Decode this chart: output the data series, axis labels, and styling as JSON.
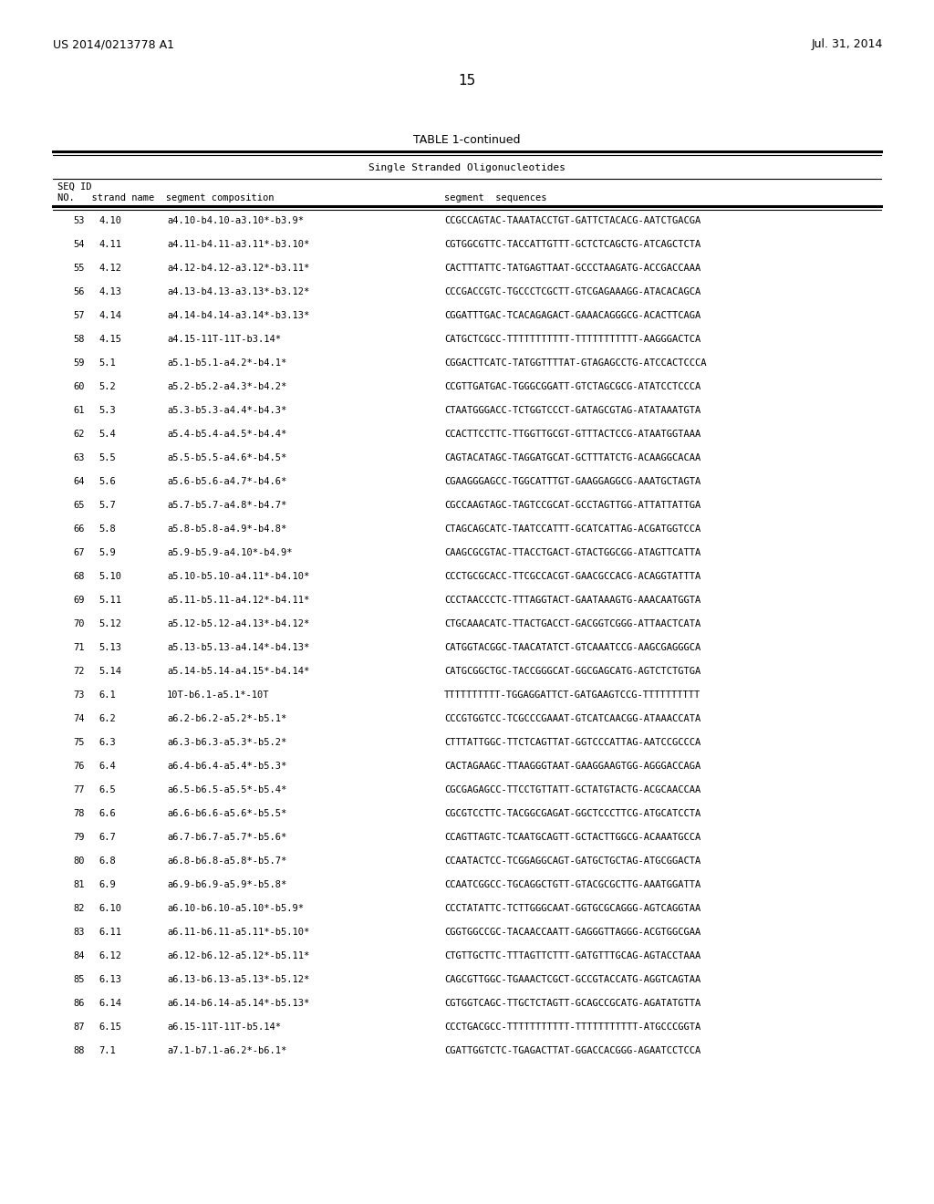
{
  "header_left": "US 2014/0213778 A1",
  "header_right": "Jul. 31, 2014",
  "page_number": "15",
  "table_title": "TABLE 1-continued",
  "table_subtitle": "Single Stranded Oligonucleotides",
  "rows": [
    [
      "53",
      "4.10",
      "a4.10-b4.10-a3.10*-b3.9*",
      "CCGCCAGTAC-TAAATACCTGT-GATTCTACACG-AATCTGACGA"
    ],
    [
      "54",
      "4.11",
      "a4.11-b4.11-a3.11*-b3.10*",
      "CGTGGCGTTC-TACCATTGTTT-GCTCTCAGCTG-ATCAGCTCTA"
    ],
    [
      "55",
      "4.12",
      "a4.12-b4.12-a3.12*-b3.11*",
      "CACTTTATTC-TATGAGTTAAT-GCCCTAAGATG-ACCGACCAAA"
    ],
    [
      "56",
      "4.13",
      "a4.13-b4.13-a3.13*-b3.12*",
      "CCCGACCGTC-TGCCCTCGCTT-GTCGAGAAAGG-ATACACAGCA"
    ],
    [
      "57",
      "4.14",
      "a4.14-b4.14-a3.14*-b3.13*",
      "CGGATTTGAC-TCACAGAGACT-GAAACAGGGCG-ACACTTCAGA"
    ],
    [
      "58",
      "4.15",
      "a4.15-11T-11T-b3.14*",
      "CATGCTCGCC-TTTTTTTTTTT-TTTTTTTTTTT-AAGGGACTCA"
    ],
    [
      "59",
      "5.1",
      "a5.1-b5.1-a4.2*-b4.1*",
      "CGGACTTCATC-TATGGTTTTAT-GTAGAGCCTG-ATCCACTCCCA"
    ],
    [
      "60",
      "5.2",
      "a5.2-b5.2-a4.3*-b4.2*",
      "CCGTTGATGAC-TGGGCGGATT-GTCTAGCGCG-ATATCCTCCCA"
    ],
    [
      "61",
      "5.3",
      "a5.3-b5.3-a4.4*-b4.3*",
      "CTAATGGGACC-TCTGGTCCCT-GATAGCGTAG-ATATAAATGTA"
    ],
    [
      "62",
      "5.4",
      "a5.4-b5.4-a4.5*-b4.4*",
      "CCACTTCCTTC-TTGGTTGCGT-GTTTACTCCG-ATAATGGTAAA"
    ],
    [
      "63",
      "5.5",
      "a5.5-b5.5-a4.6*-b4.5*",
      "CAGTACATAGC-TAGGATGCAT-GCTTTАТCTG-ACAAGGCACAA"
    ],
    [
      "64",
      "5.6",
      "a5.6-b5.6-a4.7*-b4.6*",
      "CGAAGGGAGCC-TGGCATTTGT-GAAGGAGGCG-AAATGCTAGTA"
    ],
    [
      "65",
      "5.7",
      "a5.7-b5.7-a4.8*-b4.7*",
      "CGCCAAGTAGC-TAGTCCGCAT-GCCTAGTTGG-ATTATTATTGA"
    ],
    [
      "66",
      "5.8",
      "a5.8-b5.8-a4.9*-b4.8*",
      "CTAGCAGCATC-TAATCCATTT-GCATCATTAG-ACGATGGTCCA"
    ],
    [
      "67",
      "5.9",
      "a5.9-b5.9-a4.10*-b4.9*",
      "CAAGCGCGTAC-TTACCTGACT-GTACTGGCGG-ATAGTTCATTA"
    ],
    [
      "68",
      "5.10",
      "a5.10-b5.10-a4.11*-b4.10*",
      "CCCTGCGCACC-TTCGCCACGT-GAACGCCACG-ACAGGTATTTA"
    ],
    [
      "69",
      "5.11",
      "a5.11-b5.11-a4.12*-b4.11*",
      "CCCTAACCCTC-TTTAGGTACT-GAATAAAGTG-AAACAATGGTA"
    ],
    [
      "70",
      "5.12",
      "a5.12-b5.12-a4.13*-b4.12*",
      "CTGCAAACATC-TTACTGACCT-GACGGTCGGG-ATTAACTCATA"
    ],
    [
      "71",
      "5.13",
      "a5.13-b5.13-a4.14*-b4.13*",
      "CATGGTACGGC-TAACATATCT-GTCAAATCCG-AAGCGAGGGCA"
    ],
    [
      "72",
      "5.14",
      "a5.14-b5.14-a4.15*-b4.14*",
      "CATGCGGCTGC-TACCGGGCAT-GGCGAGCATG-AGTCTCTGTGA"
    ],
    [
      "73",
      "6.1",
      "10T-b6.1-a5.1*-10T",
      "TTTTTTTTTT-TGGAGGATTCT-GATGAAGTCCG-TTTTTTTTTT"
    ],
    [
      "74",
      "6.2",
      "a6.2-b6.2-a5.2*-b5.1*",
      "CCCGTGGTCC-TCGCCCGAAAT-GTCATCAACGG-ATAAACCATA"
    ],
    [
      "75",
      "6.3",
      "a6.3-b6.3-a5.3*-b5.2*",
      "CTTTATTGGC-TTCTCAGTTAT-GGTCCCATTAG-AATCCGCCCA"
    ],
    [
      "76",
      "6.4",
      "a6.4-b6.4-a5.4*-b5.3*",
      "CACTAGAAGC-TTAAGGGTAAT-GAAGGAAGTGG-AGGGACCAGA"
    ],
    [
      "77",
      "6.5",
      "a6.5-b6.5-a5.5*-b5.4*",
      "CGCGAGAGCC-TTCCTGTТATT-GCTATGTACTG-ACGCAACCAA"
    ],
    [
      "78",
      "6.6",
      "a6.6-b6.6-a5.6*-b5.5*",
      "CGCGTCCTTC-TACGGCGAGAT-GGCTCCCTTCG-ATGCATCCTA"
    ],
    [
      "79",
      "6.7",
      "a6.7-b6.7-a5.7*-b5.6*",
      "CCAGTTAGTC-TCAATGCAGTT-GCTACTTGGCG-ACAAATGCCA"
    ],
    [
      "80",
      "6.8",
      "a6.8-b6.8-a5.8*-b5.7*",
      "CCAATACTCC-TCGGAGGCAGT-GATGCTGCTAG-ATGCGGACTA"
    ],
    [
      "81",
      "6.9",
      "a6.9-b6.9-a5.9*-b5.8*",
      "CCAATCGGCC-TGCAGGCTGTT-GTACGCGCTTG-AAATGGATTA"
    ],
    [
      "82",
      "6.10",
      "a6.10-b6.10-a5.10*-b5.9*",
      "CCCTATATTC-TCTTGGGCAAT-GGTGCGCAGGG-AGTCAGGTAA"
    ],
    [
      "83",
      "6.11",
      "a6.11-b6.11-a5.11*-b5.10*",
      "CGGTGGCCGC-TACAACCAATT-GAGGGTTAGGG-ACGTGGCGAA"
    ],
    [
      "84",
      "6.12",
      "a6.12-b6.12-a5.12*-b5.11*",
      "CTGTTGCTTC-TTTAGTTCTTT-GATGTTTGCAG-AGTACCTAAA"
    ],
    [
      "85",
      "6.13",
      "a6.13-b6.13-a5.13*-b5.12*",
      "CAGCGTTGGC-TGAAACTCGCT-GCCGTACCATG-AGGTCAGTAA"
    ],
    [
      "86",
      "6.14",
      "a6.14-b6.14-a5.14*-b5.13*",
      "CGTGGTCAGC-TTGCTCTAGTT-GCAGCCGCATG-AGATATGTTA"
    ],
    [
      "87",
      "6.15",
      "a6.15-11T-11T-b5.14*",
      "CCCTGACGCC-TTTTTTTTTTT-TTTTTTTTTTT-ATGCCCGGTA"
    ],
    [
      "88",
      "7.1",
      "a7.1-b7.1-a6.2*-b6.1*",
      "CGATTGGTCTC-TGAGACTTAT-GGACCACGGG-AGAATCCTCCA"
    ]
  ]
}
